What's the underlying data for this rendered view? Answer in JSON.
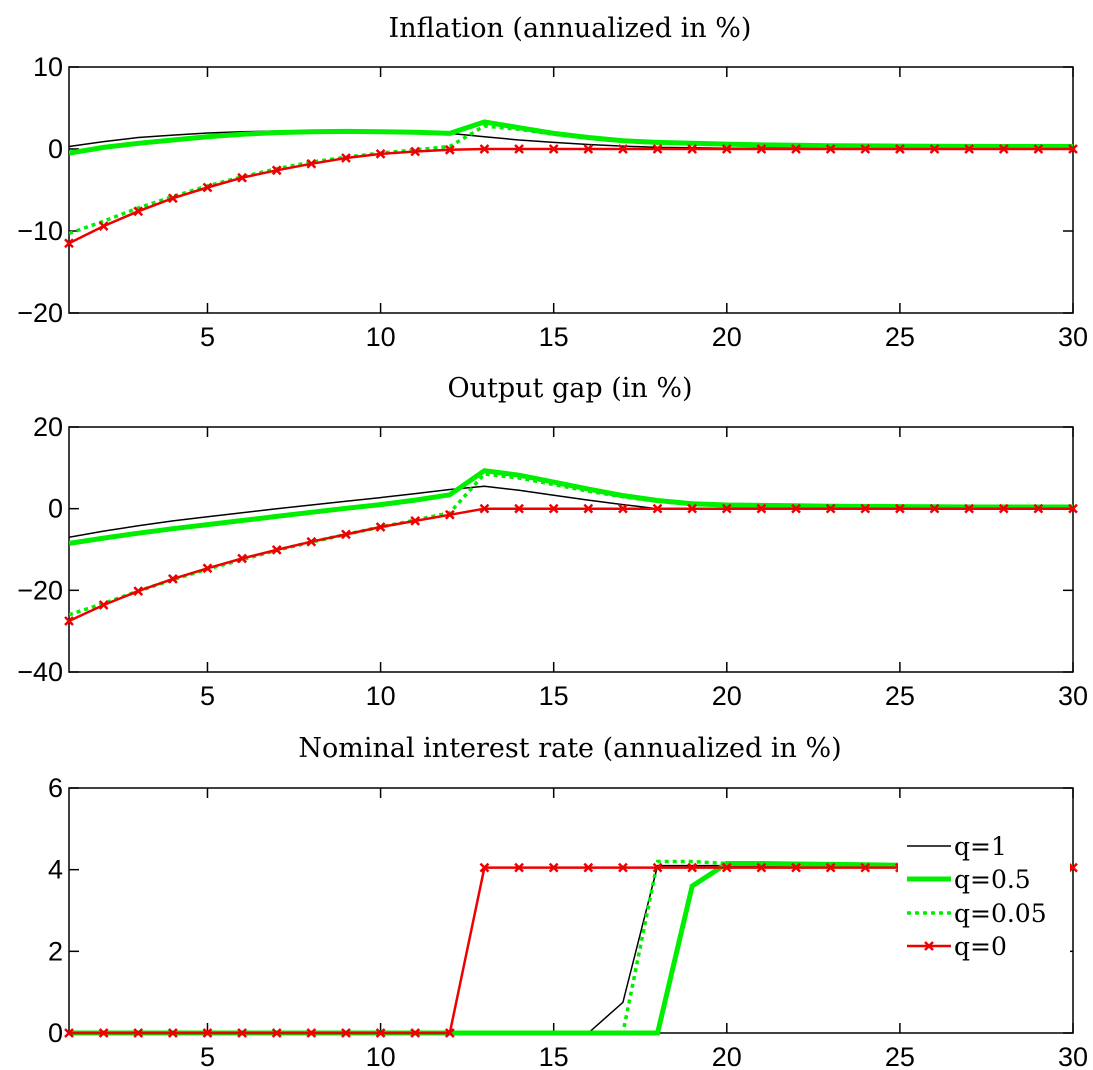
{
  "legend": {
    "position": "bottom-right of third panel",
    "entries": [
      "q=1",
      "q=0.5",
      "q=0.05",
      "q=0"
    ]
  },
  "series_styles": {
    "q=1": {
      "color": "#000000",
      "style": "solid thin"
    },
    "q=0.5": {
      "color": "#00ee00",
      "style": "solid thick"
    },
    "q=0.05": {
      "color": "#00ee00",
      "style": "dotted"
    },
    "q=0": {
      "color": "#ee0000",
      "style": "solid with x markers"
    }
  },
  "chart_data": [
    {
      "type": "line",
      "title": "Inflation (annualized in %)",
      "xlabel": "",
      "ylabel": "",
      "xlim": [
        1,
        30
      ],
      "ylim": [
        -20,
        10
      ],
      "xticks": [
        5,
        10,
        15,
        20,
        25,
        30
      ],
      "yticks": [
        -20,
        -10,
        0,
        10
      ],
      "ytick_labels": [
        "−20",
        "−10",
        "0",
        "10"
      ],
      "grid": false,
      "x": [
        1,
        2,
        3,
        4,
        5,
        6,
        7,
        8,
        9,
        10,
        11,
        12,
        13,
        14,
        15,
        16,
        17,
        18,
        19,
        20,
        21,
        22,
        23,
        24,
        25,
        26,
        27,
        28,
        29,
        30
      ],
      "series": [
        {
          "name": "q=1",
          "values": [
            0.3,
            0.9,
            1.4,
            1.7,
            1.95,
            2.1,
            2.2,
            2.25,
            2.25,
            2.2,
            2.1,
            1.9,
            1.5,
            1.1,
            0.8,
            0.55,
            0.35,
            0.2,
            0.15,
            0.1,
            0.1,
            0.1,
            0.1,
            0.1,
            0.1,
            0.1,
            0.1,
            0.1,
            0.1,
            0.1
          ]
        },
        {
          "name": "q=0.5",
          "values": [
            -0.5,
            0.2,
            0.7,
            1.1,
            1.5,
            1.8,
            2.0,
            2.1,
            2.15,
            2.1,
            2.05,
            1.9,
            3.3,
            2.6,
            1.9,
            1.4,
            1.0,
            0.8,
            0.7,
            0.6,
            0.5,
            0.45,
            0.4,
            0.38,
            0.35,
            0.33,
            0.32,
            0.3,
            0.3,
            0.3
          ]
        },
        {
          "name": "q=0.05",
          "values": [
            -10.3,
            -8.8,
            -7.2,
            -5.8,
            -4.5,
            -3.4,
            -2.4,
            -1.6,
            -1.0,
            -0.5,
            -0.1,
            0.3,
            2.8,
            2.4,
            1.8,
            1.3,
            0.95,
            0.8,
            0.7,
            0.6,
            0.5,
            0.45,
            0.4,
            0.38,
            0.35,
            0.33,
            0.32,
            0.3,
            0.3,
            0.3
          ]
        },
        {
          "name": "q=0",
          "values": [
            -11.5,
            -9.4,
            -7.6,
            -6.0,
            -4.7,
            -3.5,
            -2.6,
            -1.8,
            -1.1,
            -0.6,
            -0.3,
            -0.1,
            0,
            0,
            0,
            0,
            0,
            0,
            0,
            0,
            0,
            0,
            0,
            0,
            0,
            0,
            0,
            0,
            0,
            0
          ]
        }
      ]
    },
    {
      "type": "line",
      "title": "Output gap (in %)",
      "xlabel": "",
      "ylabel": "",
      "xlim": [
        1,
        30
      ],
      "ylim": [
        -40,
        20
      ],
      "xticks": [
        5,
        10,
        15,
        20,
        25,
        30
      ],
      "yticks": [
        -40,
        -20,
        0,
        20
      ],
      "ytick_labels": [
        "−40",
        "−20",
        "0",
        "20"
      ],
      "grid": false,
      "x": [
        1,
        2,
        3,
        4,
        5,
        6,
        7,
        8,
        9,
        10,
        11,
        12,
        13,
        14,
        15,
        16,
        17,
        18,
        19,
        20,
        21,
        22,
        23,
        24,
        25,
        26,
        27,
        28,
        29,
        30
      ],
      "series": [
        {
          "name": "q=1",
          "values": [
            -7.0,
            -5.5,
            -4.2,
            -3.0,
            -2.0,
            -1.0,
            0.0,
            0.9,
            1.8,
            2.7,
            3.7,
            4.7,
            5.5,
            4.5,
            3.3,
            2.1,
            1.0,
            0.0,
            0,
            0,
            0,
            0,
            0,
            0,
            0,
            0,
            0,
            0,
            0,
            0
          ]
        },
        {
          "name": "q=0.5",
          "values": [
            -8.5,
            -7.2,
            -6.0,
            -4.9,
            -3.9,
            -2.9,
            -1.9,
            -0.9,
            0.1,
            1.0,
            2.1,
            3.4,
            9.3,
            8.2,
            6.5,
            4.8,
            3.2,
            2.0,
            1.2,
            0.9,
            0.8,
            0.7,
            0.6,
            0.55,
            0.5,
            0.45,
            0.42,
            0.4,
            0.4,
            0.4
          ]
        },
        {
          "name": "q=0.05",
          "values": [
            -26.0,
            -23.2,
            -20.2,
            -17.4,
            -14.8,
            -12.5,
            -10.2,
            -8.2,
            -6.3,
            -4.5,
            -2.8,
            -1.0,
            8.5,
            7.5,
            5.9,
            4.3,
            2.9,
            1.8,
            1.1,
            0.9,
            0.8,
            0.7,
            0.6,
            0.55,
            0.5,
            0.45,
            0.42,
            0.4,
            0.4,
            0.4
          ]
        },
        {
          "name": "q=0",
          "values": [
            -27.5,
            -23.6,
            -20.2,
            -17.2,
            -14.6,
            -12.2,
            -10.1,
            -8.1,
            -6.3,
            -4.5,
            -3.0,
            -1.5,
            0,
            0,
            0,
            0,
            0,
            0,
            0,
            0,
            0,
            0,
            0,
            0,
            0,
            0,
            0,
            0,
            0,
            0
          ]
        }
      ]
    },
    {
      "type": "line",
      "title": "Nominal interest rate (annualized in %)",
      "xlabel": "",
      "ylabel": "",
      "xlim": [
        1,
        30
      ],
      "ylim": [
        0,
        6
      ],
      "xticks": [
        5,
        10,
        15,
        20,
        25,
        30
      ],
      "yticks": [
        0,
        2,
        4,
        6
      ],
      "ytick_labels": [
        "0",
        "2",
        "4",
        "6"
      ],
      "grid": false,
      "x": [
        1,
        2,
        3,
        4,
        5,
        6,
        7,
        8,
        9,
        10,
        11,
        12,
        13,
        14,
        15,
        16,
        17,
        18,
        19,
        20,
        21,
        22,
        23,
        24,
        25,
        26,
        27,
        28,
        29,
        30
      ],
      "series": [
        {
          "name": "q=1",
          "values": [
            0,
            0,
            0,
            0,
            0,
            0,
            0,
            0,
            0,
            0,
            0,
            0,
            0,
            0,
            0,
            0,
            0.75,
            4.1,
            4.1,
            4.1,
            4.1,
            4.1,
            4.1,
            4.1,
            4.1,
            4.1,
            4.1,
            4.1,
            4.1,
            4.1
          ]
        },
        {
          "name": "q=0.5",
          "values": [
            0,
            0,
            0,
            0,
            0,
            0,
            0,
            0,
            0,
            0,
            0,
            0,
            0,
            0,
            0,
            0,
            0,
            0,
            3.6,
            4.15,
            4.15,
            4.14,
            4.13,
            4.12,
            4.11,
            4.1,
            4.09,
            4.08,
            4.07,
            4.06
          ]
        },
        {
          "name": "q=0.05",
          "values": [
            0,
            0,
            0,
            0,
            0,
            0,
            0,
            0,
            0,
            0,
            0,
            0,
            0,
            0,
            0,
            0,
            0,
            4.2,
            4.2,
            4.15,
            4.14,
            4.13,
            4.12,
            4.11,
            4.1,
            4.09,
            4.08,
            4.07,
            4.06,
            4.05
          ]
        },
        {
          "name": "q=0",
          "values": [
            0,
            0,
            0,
            0,
            0,
            0,
            0,
            0,
            0,
            0,
            0,
            0,
            4.05,
            4.05,
            4.05,
            4.05,
            4.05,
            4.05,
            4.05,
            4.05,
            4.05,
            4.05,
            4.05,
            4.05,
            4.05,
            4.05,
            4.05,
            4.05,
            4.05,
            4.05
          ]
        }
      ]
    }
  ]
}
